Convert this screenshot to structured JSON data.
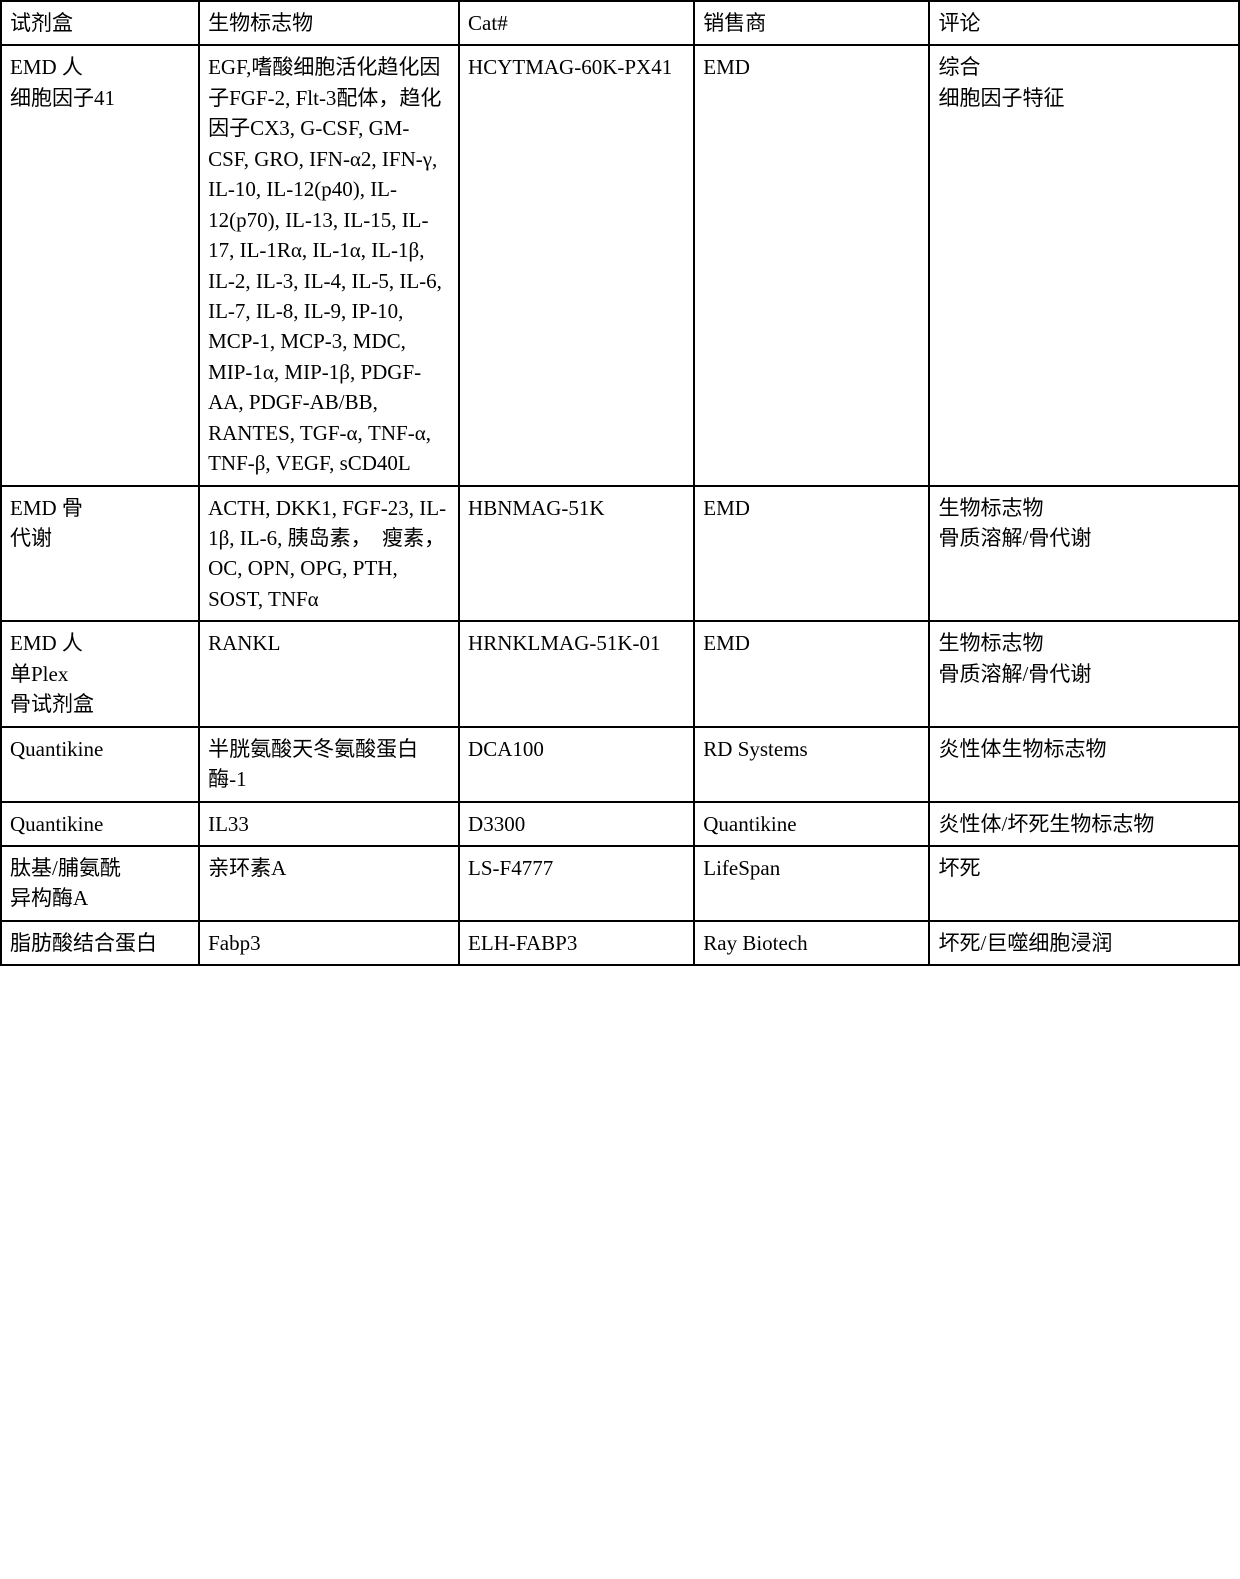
{
  "table": {
    "type": "table",
    "border_color": "#000000",
    "background_color": "#ffffff",
    "text_color": "#000000",
    "font_size_pt": 16,
    "columns": [
      {
        "key": "kit",
        "label": "试剂盒",
        "width_pct": 16
      },
      {
        "key": "biomarker",
        "label": "生物标志物",
        "width_pct": 21
      },
      {
        "key": "cat",
        "label": "Cat#",
        "width_pct": 19
      },
      {
        "key": "vendor",
        "label": "销售商",
        "width_pct": 19
      },
      {
        "key": "comment",
        "label": "评论",
        "width_pct": 25
      }
    ],
    "rows": [
      {
        "kit": "EMD 人\n细胞因子41",
        "biomarker": "EGF,嗜酸细胞活化趋化因子FGF-2, Flt-3配体，趋化因子CX3, G-CSF, GM-CSF, GRO, IFN-α2, IFN-γ, IL-10, IL-12(p40), IL-12(p70), IL-13, IL-15, IL-17, IL-1Rα, IL-1α, IL-1β, IL-2, IL-3, IL-4, IL-5, IL-6, IL-7, IL-8, IL-9, IP-10, MCP-1, MCP-3, MDC, MIP-1α, MIP-1β, PDGF-AA, PDGF-AB/BB, RANTES, TGF-α, TNF-α, TNF-β, VEGF, sCD40L",
        "cat": "HCYTMAG-60K-PX41",
        "vendor": "EMD",
        "comment": "综合\n细胞因子特征"
      },
      {
        "kit": "EMD 骨\n代谢",
        "biomarker": "ACTH, DKK1, FGF-23, IL-1β, IL-6, 胰岛素，　瘦素，OC, OPN, OPG, PTH, SOST, TNFα",
        "cat": "HBNMAG-51K",
        "vendor": "EMD",
        "comment": "生物标志物\n骨质溶解/骨代谢"
      },
      {
        "kit": "EMD 人\n单Plex\n骨试剂盒",
        "biomarker": "RANKL",
        "cat": "HRNKLMAG-51K-01",
        "vendor": "EMD",
        "comment": "生物标志物\n骨质溶解/骨代谢"
      },
      {
        "kit": "Quantikine",
        "biomarker": "半胱氨酸天冬氨酸蛋白酶-1",
        "cat": "DCA100",
        "vendor": "RD Systems",
        "comment": "炎性体生物标志物"
      },
      {
        "kit": "Quantikine",
        "biomarker": "IL33",
        "cat": "D3300",
        "vendor": "Quantikine",
        "comment": "炎性体/坏死生物标志物"
      },
      {
        "kit": "肽基/脯氨酰\n异构酶A",
        "biomarker": "亲环素A",
        "cat": "LS-F4777",
        "vendor": "LifeSpan",
        "comment": "坏死"
      },
      {
        "kit": "脂肪酸结合蛋白",
        "biomarker": "Fabp3",
        "cat": "ELH-FABP3",
        "vendor": "Ray Biotech",
        "comment": "坏死/巨噬细胞浸润"
      }
    ]
  }
}
